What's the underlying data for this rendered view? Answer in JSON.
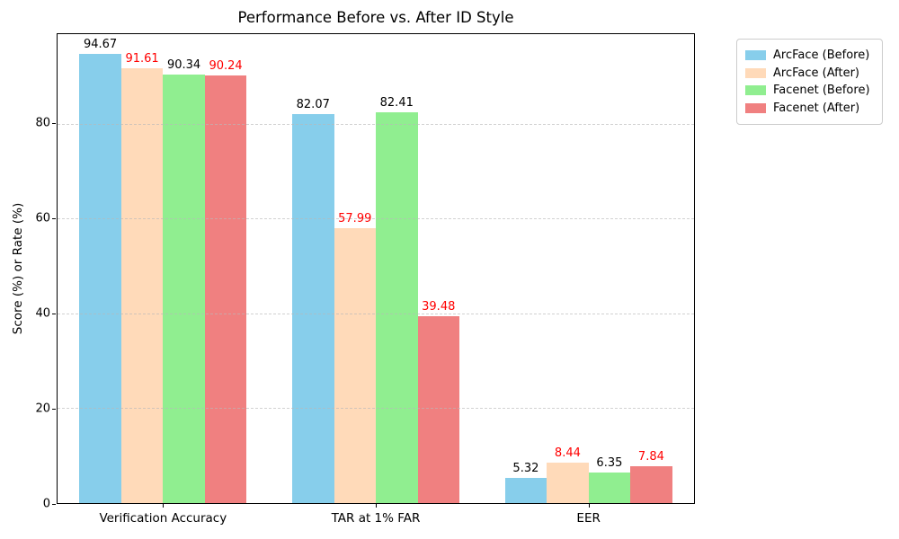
{
  "chart_data": {
    "type": "bar",
    "title": "Performance Before vs. After ID Style",
    "xlabel": "",
    "ylabel": "Score (%) or Rate (%)",
    "categories": [
      "Verification Accuracy",
      "TAR at 1% FAR",
      "EER"
    ],
    "series": [
      {
        "name": "ArcFace (Before)",
        "color": "#87CEEB",
        "value_label_color": "#000000",
        "values": [
          94.67,
          82.07,
          5.32
        ]
      },
      {
        "name": "ArcFace (After)",
        "color": "#FFDAB9",
        "value_label_color": "#FF0000",
        "values": [
          91.61,
          57.99,
          8.44
        ]
      },
      {
        "name": "Facenet (Before)",
        "color": "#90EE90",
        "value_label_color": "#000000",
        "values": [
          90.34,
          82.41,
          6.35
        ]
      },
      {
        "name": "Facenet (After)",
        "color": "#F08080",
        "value_label_color": "#FF0000",
        "values": [
          90.24,
          39.48,
          7.84
        ]
      }
    ],
    "value_label_decimals": 2,
    "yticks": [
      0,
      20,
      40,
      60,
      80
    ],
    "ylim": [
      0,
      98.9
    ],
    "grid": {
      "axis": "y",
      "style": "dashed",
      "color": "#b9b9b9"
    },
    "legend": {
      "position": "upper-right-outside"
    }
  }
}
